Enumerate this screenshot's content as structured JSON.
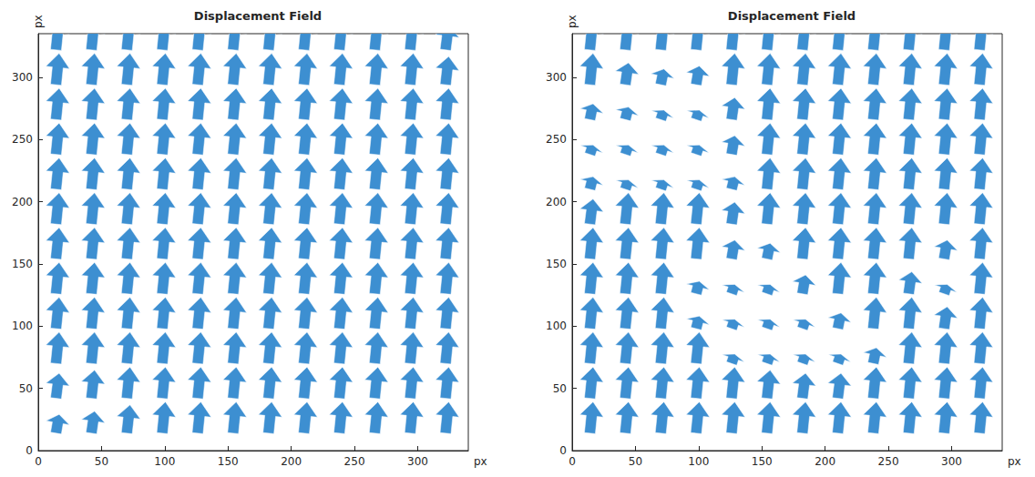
{
  "chart_data": [
    {
      "type": "quiver",
      "title": "Displacement Field",
      "x_label": "px",
      "y_label": "px",
      "xlim": [
        0,
        340
      ],
      "ylim": [
        0,
        335
      ],
      "xticks": [
        0,
        50,
        100,
        150,
        200,
        250,
        300
      ],
      "yticks": [
        0,
        50,
        100,
        150,
        200,
        250,
        300
      ],
      "grid": false,
      "color": "#3d8fd1",
      "x": [
        14,
        42,
        70,
        98,
        126,
        154,
        182,
        210,
        238,
        266,
        294,
        322
      ],
      "y": [
        14,
        42,
        70,
        98,
        126,
        154,
        182,
        210,
        238,
        266,
        294,
        322
      ],
      "u": [
        [
          0.1,
          0.1,
          0.1,
          0.1,
          0.1,
          0.1,
          0.1,
          0.1,
          0.1,
          0.1,
          0.1,
          0.1
        ],
        [
          0.1,
          0.1,
          0.1,
          0.1,
          0.1,
          0.1,
          0.1,
          0.1,
          0.1,
          0.1,
          0.1,
          0.1
        ],
        [
          0.1,
          0.1,
          0.1,
          0.1,
          0.1,
          0.1,
          0.1,
          0.1,
          0.1,
          0.1,
          0.1,
          0.1
        ],
        [
          0.1,
          0.1,
          0.1,
          0.1,
          0.1,
          0.1,
          0.1,
          0.1,
          0.1,
          0.1,
          0.1,
          0.1
        ],
        [
          0.1,
          0.1,
          0.1,
          0.1,
          0.1,
          0.1,
          0.1,
          0.1,
          0.1,
          0.1,
          0.1,
          0.1
        ],
        [
          0.1,
          0.1,
          0.1,
          0.1,
          0.1,
          0.1,
          0.1,
          0.1,
          0.1,
          0.1,
          0.1,
          0.1
        ],
        [
          0.1,
          0.1,
          0.1,
          0.1,
          0.1,
          0.1,
          0.1,
          0.1,
          0.1,
          0.1,
          0.1,
          0.1
        ],
        [
          0.1,
          0.1,
          0.1,
          0.1,
          0.1,
          0.1,
          0.1,
          0.1,
          0.1,
          0.1,
          0.1,
          0.1
        ],
        [
          0.1,
          0.1,
          0.1,
          0.1,
          0.1,
          0.1,
          0.1,
          0.1,
          0.1,
          0.1,
          0.1,
          0.1
        ],
        [
          0.1,
          0.1,
          0.1,
          0.1,
          0.1,
          0.1,
          0.1,
          0.1,
          0.1,
          0.1,
          0.1,
          0.1
        ],
        [
          0.1,
          0.1,
          0.1,
          0.1,
          0.1,
          0.1,
          0.1,
          0.1,
          0.1,
          0.1,
          0.1,
          0.1
        ],
        [
          0.1,
          0.1,
          0.1,
          0.1,
          0.1,
          0.1,
          0.1,
          0.1,
          0.1,
          0.1,
          0.1,
          0.1
        ]
      ],
      "v": [
        [
          0.6,
          0.7,
          0.9,
          1,
          1,
          1,
          1,
          1,
          1,
          1,
          1,
          1
        ],
        [
          0.8,
          0.9,
          1,
          1,
          1,
          1,
          1,
          1,
          1,
          1,
          1,
          1
        ],
        [
          1,
          1,
          1,
          1,
          1,
          1,
          1,
          1,
          1,
          1,
          1,
          1
        ],
        [
          1,
          1,
          1,
          1,
          1,
          1,
          1,
          1,
          1,
          1,
          1,
          1
        ],
        [
          1,
          1,
          1,
          1,
          1,
          1,
          1,
          1,
          1,
          1,
          1,
          1
        ],
        [
          1,
          1,
          1,
          1,
          1,
          1,
          1,
          1,
          1,
          1,
          1,
          1
        ],
        [
          1,
          1,
          1,
          1,
          1,
          1,
          1,
          1,
          1,
          1,
          1,
          1
        ],
        [
          1,
          1,
          1,
          1,
          1,
          1,
          1,
          1,
          1,
          1,
          1,
          1
        ],
        [
          1,
          1,
          1,
          1,
          1,
          1,
          1,
          1,
          1,
          1,
          1,
          1
        ],
        [
          1,
          1,
          1,
          1,
          1,
          1,
          1,
          1,
          1,
          1,
          1,
          1
        ],
        [
          1,
          1,
          1,
          1,
          1,
          1,
          1,
          1,
          1,
          1,
          1,
          0.9
        ],
        [
          1,
          1,
          1,
          1,
          1,
          1,
          1,
          1,
          1,
          1,
          1,
          0.8
        ]
      ]
    },
    {
      "type": "quiver",
      "title": "Displacement Field",
      "x_label": "px",
      "y_label": "px",
      "xlim": [
        0,
        340
      ],
      "ylim": [
        0,
        335
      ],
      "xticks": [
        0,
        50,
        100,
        150,
        200,
        250,
        300
      ],
      "yticks": [
        0,
        50,
        100,
        150,
        200,
        250,
        300
      ],
      "grid": false,
      "color": "#3d8fd1",
      "x": [
        14,
        42,
        70,
        98,
        126,
        154,
        182,
        210,
        238,
        266,
        294,
        322
      ],
      "y": [
        14,
        42,
        70,
        98,
        126,
        154,
        182,
        210,
        238,
        266,
        294,
        322
      ],
      "u": [
        [
          0.1,
          0.1,
          0.1,
          0.1,
          0.1,
          0.1,
          0.1,
          0.1,
          0.1,
          0.1,
          0.1,
          0.1
        ],
        [
          0.1,
          0.1,
          0.1,
          0.1,
          0.1,
          0.1,
          0.1,
          0.1,
          0.1,
          0.1,
          0.1,
          0.1
        ],
        [
          0.1,
          0.1,
          0.1,
          0.1,
          0.1,
          0.1,
          0.1,
          0.1,
          0.1,
          0.1,
          0.1,
          0.1
        ],
        [
          0.1,
          0.1,
          0.1,
          0.1,
          0.1,
          0.1,
          0.1,
          0.1,
          0.1,
          0.1,
          0.1,
          0.1
        ],
        [
          0.1,
          0.1,
          0.1,
          0.1,
          0.1,
          0.1,
          0.1,
          0.1,
          0.1,
          0.1,
          0.1,
          0.1
        ],
        [
          0.1,
          0.1,
          0.1,
          0.1,
          0.1,
          0.1,
          0.1,
          0.1,
          0.1,
          0.1,
          0.1,
          0.1
        ],
        [
          0.1,
          0.1,
          0.1,
          0.1,
          0.1,
          0.1,
          0.1,
          0.1,
          0.1,
          0.1,
          0.1,
          0.1
        ],
        [
          0.1,
          0.1,
          0.1,
          0.1,
          0.1,
          0.1,
          0.1,
          0.1,
          0.1,
          0.1,
          0.1,
          0.1
        ],
        [
          0.1,
          0.1,
          0.1,
          0.1,
          0.1,
          0.1,
          0.1,
          0.1,
          0.1,
          0.1,
          0.1,
          0.1
        ],
        [
          0.1,
          0.1,
          0.1,
          0.1,
          0.1,
          0.1,
          0.1,
          0.1,
          0.1,
          0.1,
          0.1,
          0.1
        ],
        [
          0.1,
          0.1,
          0.1,
          0.1,
          0.1,
          0.1,
          0.1,
          0.1,
          0.1,
          0.1,
          0.1,
          0.1
        ],
        [
          0.1,
          0.1,
          0.1,
          0.1,
          0.1,
          0.1,
          0.1,
          0.1,
          0.1,
          0.1,
          0.1,
          0.1
        ]
      ],
      "v": [
        [
          1,
          1,
          1,
          1,
          1,
          1,
          1,
          1,
          1,
          1,
          1,
          1
        ],
        [
          1,
          1,
          1,
          1,
          1,
          0.9,
          0.8,
          0.8,
          1,
          1,
          1,
          1
        ],
        [
          1,
          1,
          1,
          1,
          0.3,
          0.3,
          0.3,
          0.3,
          0.5,
          1,
          1,
          1
        ],
        [
          1,
          1,
          1,
          0.4,
          0.3,
          0.3,
          0.3,
          0.5,
          1,
          1,
          0.7,
          1
        ],
        [
          1,
          1,
          1,
          0.4,
          0.3,
          0.3,
          0.6,
          1,
          1,
          0.7,
          0.3,
          1
        ],
        [
          1,
          1,
          1,
          1,
          0.6,
          0.5,
          1,
          1,
          1,
          1,
          0.6,
          1
        ],
        [
          0.8,
          1,
          1,
          1,
          0.7,
          1,
          1,
          1,
          1,
          1,
          1,
          1
        ],
        [
          0.4,
          0.3,
          0.3,
          0.3,
          0.4,
          1,
          1,
          1,
          1,
          1,
          1,
          1
        ],
        [
          0.3,
          0.3,
          0.3,
          0.3,
          0.6,
          1,
          1,
          1,
          1,
          1,
          1,
          1
        ],
        [
          0.5,
          0.4,
          0.3,
          0.3,
          0.7,
          1,
          1,
          1,
          1,
          1,
          1,
          1
        ],
        [
          1,
          0.7,
          0.5,
          0.6,
          1,
          1,
          1,
          1,
          1,
          1,
          1,
          1
        ],
        [
          1,
          1,
          1,
          1,
          1,
          1,
          1,
          1,
          1,
          1,
          1,
          1
        ]
      ]
    }
  ]
}
